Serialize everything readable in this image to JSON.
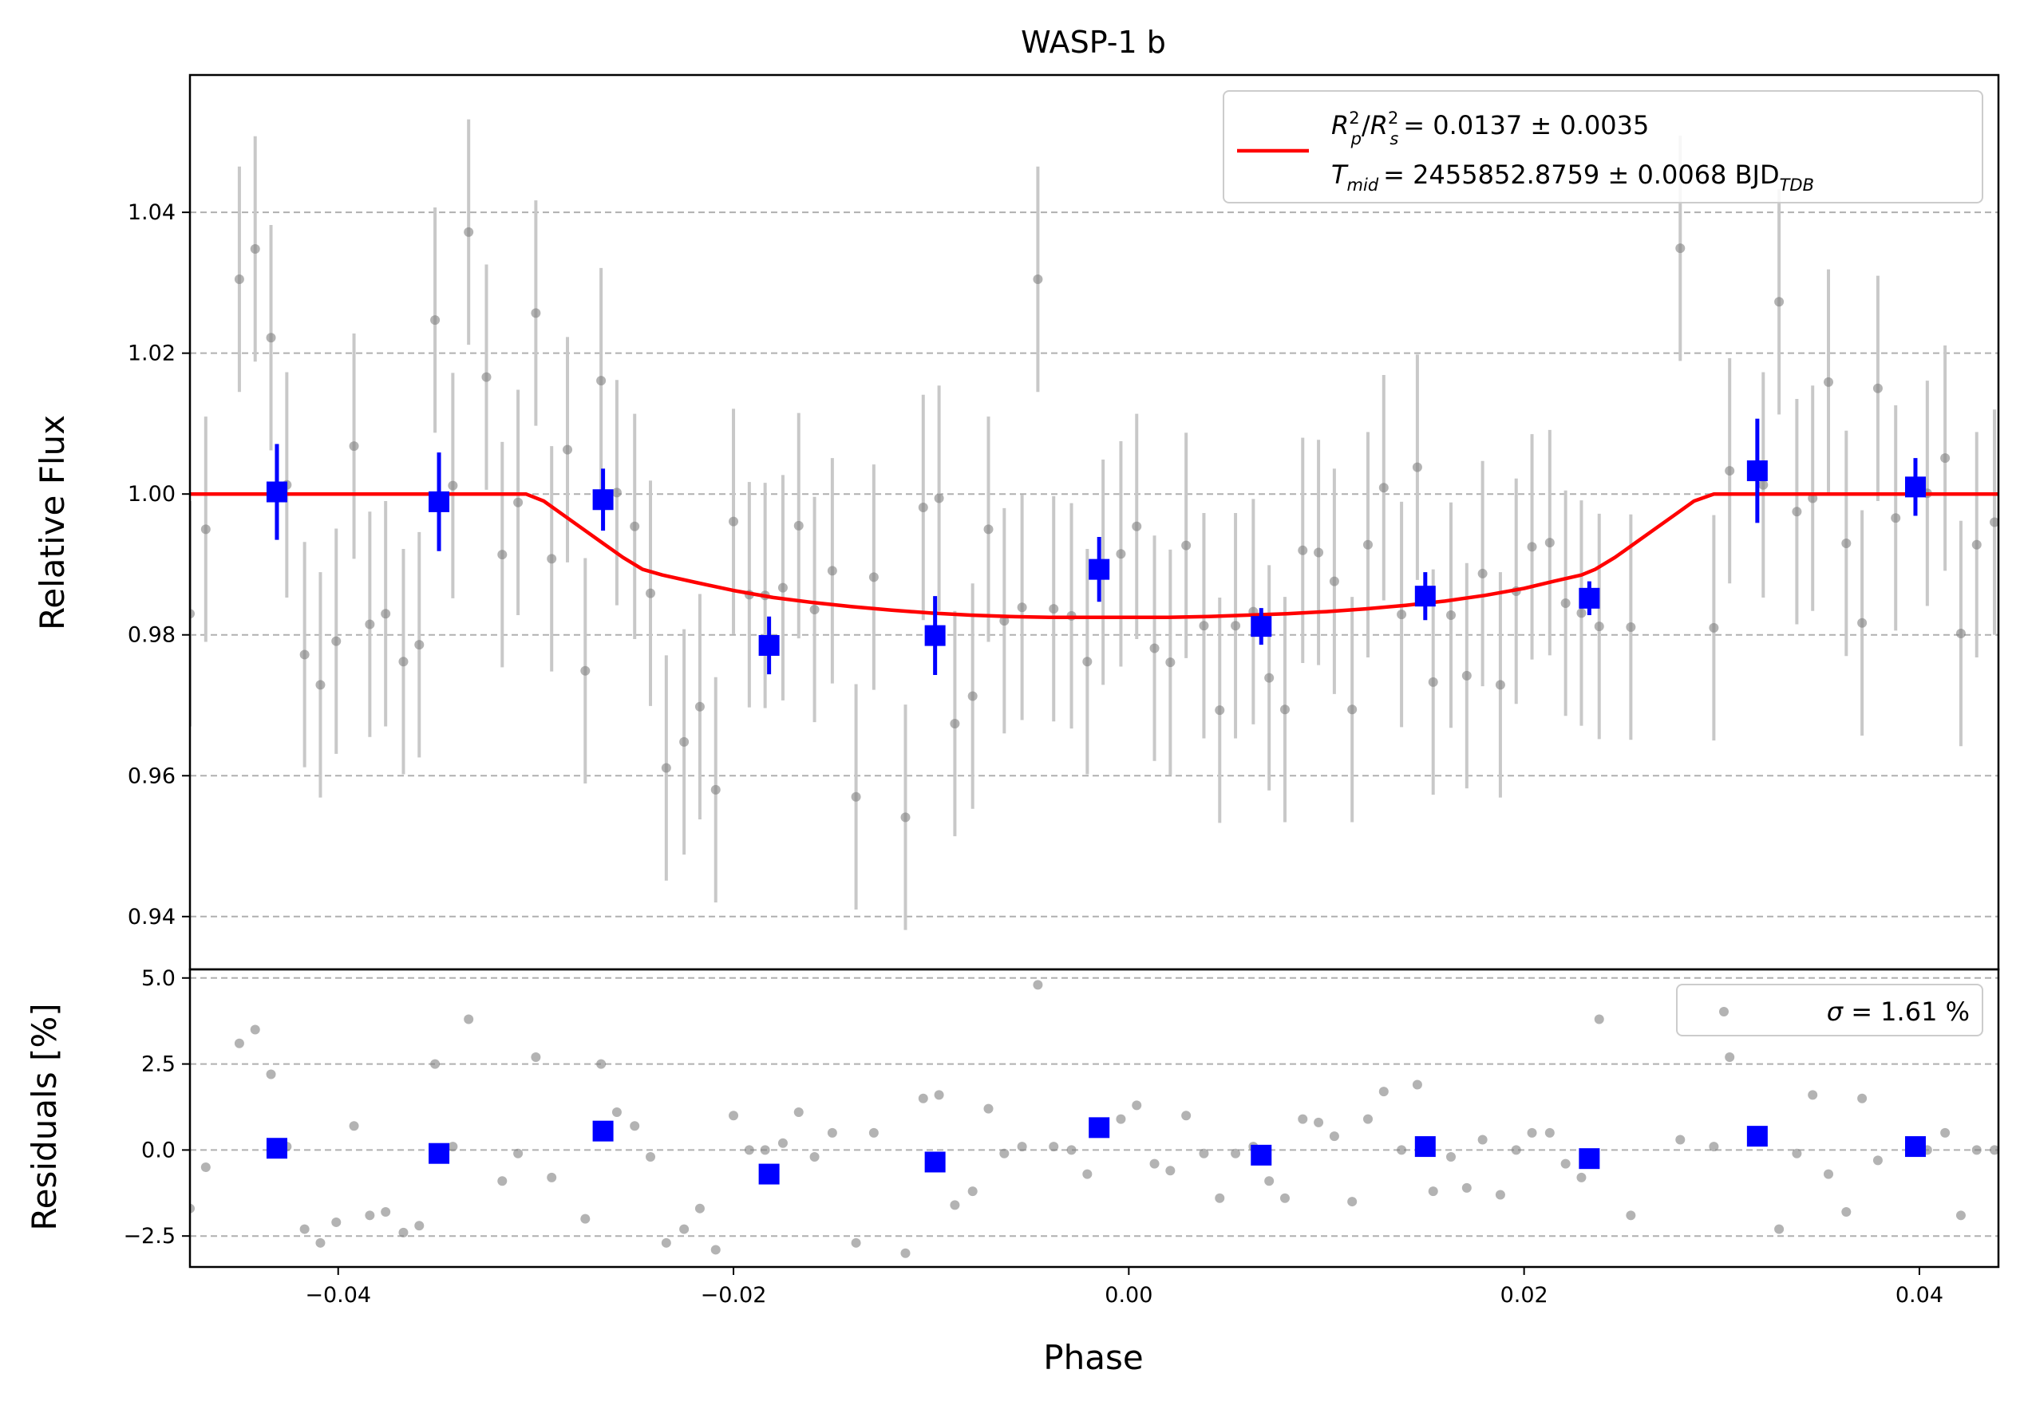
{
  "chart_data": [
    {
      "type": "scatter",
      "panel": "top",
      "title": "WASP-1 b",
      "xlabel": "",
      "ylabel": "Relative Flux",
      "xlim": [
        -0.0475,
        0.044
      ],
      "ylim": [
        0.9325,
        1.0595
      ],
      "grid": "horizontal dashed",
      "y_ticks": [
        0.94,
        0.96,
        0.98,
        1.0,
        1.02,
        1.04
      ],
      "y_tick_labels": [
        "0.94",
        "0.96",
        "0.98",
        "1.00",
        "1.02",
        "1.04"
      ],
      "legend": {
        "placement": "upper-right",
        "line1": {
          "lhs_a": "R",
          "lhs_a_sup": "2",
          "lhs_a_sub": "p",
          "lhs_b": "R",
          "lhs_b_sup": "2",
          "lhs_b_sub": "s",
          "rhs": "= 0.0137 ± 0.0035"
        },
        "line2": {
          "lhs": "T",
          "lhs_sub": "mid",
          "rhs": "= 2455852.8759 ± 0.0068 BJD",
          "unit_sub": "TDB"
        }
      },
      "colors": {
        "raw": "#808080",
        "raw_err": "#c8c8c8",
        "binned": "#0000ff",
        "model": "#ff0000"
      },
      "series": [
        {
          "name": "",
          "kind": "raw",
          "x": [
            -0.0475,
            -0.0467,
            -0.045,
            -0.0442,
            -0.0434,
            -0.0426,
            -0.0417,
            -0.0409,
            -0.0401,
            -0.0392,
            -0.0384,
            -0.0376,
            -0.0367,
            -0.0359,
            -0.0351,
            -0.0342,
            -0.0334,
            -0.0325,
            -0.0317,
            -0.0309,
            -0.03,
            -0.0292,
            -0.0284,
            -0.0275,
            -0.0267,
            -0.0259,
            -0.025,
            -0.0242,
            -0.0234,
            -0.0225,
            -0.0217,
            -0.0209,
            -0.02,
            -0.0192,
            -0.0184,
            -0.0175,
            -0.0167,
            -0.0159,
            -0.015,
            -0.0138,
            -0.0129,
            -0.0113,
            -0.0104,
            -0.0096,
            -0.0088,
            -0.0079,
            -0.0071,
            -0.0063,
            -0.0054,
            -0.0046,
            -0.0038,
            -0.0029,
            -0.0021,
            -0.0013,
            -0.0004,
            0.0004,
            0.0013,
            0.0021,
            0.0029,
            0.0038,
            0.0046,
            0.0054,
            0.0063,
            0.0071,
            0.0079,
            0.0088,
            0.0096,
            0.0104,
            0.0113,
            0.0121,
            0.0129,
            0.0138,
            0.0146,
            0.0154,
            0.0163,
            0.0171,
            0.0179,
            0.0188,
            0.0196,
            0.0204,
            0.0213,
            0.0221,
            0.0229,
            0.0238,
            0.0254,
            0.0279,
            0.0296,
            0.0304,
            0.0321,
            0.0329,
            0.0338,
            0.0346,
            0.0354,
            0.0363,
            0.0371,
            0.0379,
            0.0388,
            0.0404,
            0.0413,
            0.0421,
            0.0429,
            0.0438
          ],
          "y": [
            0.983,
            0.995,
            1.0305,
            1.0348,
            1.0222,
            1.0013,
            0.9772,
            0.9729,
            0.9791,
            1.0068,
            0.9815,
            0.983,
            0.9762,
            0.9786,
            1.0247,
            1.0012,
            1.0372,
            1.0166,
            0.9914,
            0.9988,
            1.0257,
            0.9908,
            1.0063,
            0.9749,
            1.0161,
            1.0002,
            0.9954,
            0.9859,
            0.9611,
            0.9648,
            0.9698,
            0.958,
            0.9961,
            0.9857,
            0.9856,
            0.9867,
            0.9955,
            0.9836,
            0.9891,
            0.957,
            0.9882,
            0.9541,
            0.9981,
            0.9994,
            0.9674,
            0.9713,
            0.995,
            0.982,
            0.9839,
            1.0305,
            0.9837,
            0.9827,
            0.9762,
            0.9889,
            0.9915,
            0.9954,
            0.9781,
            0.9761,
            0.9927,
            0.9813,
            0.9693,
            0.9813,
            0.9833,
            0.9739,
            0.9694,
            0.992,
            0.9917,
            0.9876,
            0.9694,
            0.9928,
            1.0009,
            0.9829,
            1.0038,
            0.9733,
            0.9828,
            0.9742,
            0.9887,
            0.9729,
            0.9862,
            0.9925,
            0.9931,
            0.9845,
            0.9831,
            0.9812,
            0.9811,
            1.0349,
            0.981,
            1.0033,
            1.0013,
            1.0273,
            0.9975,
            0.9994,
            1.0159,
            0.993,
            0.9817,
            1.015,
            0.9966,
            1.0001,
            1.0051,
            0.9802,
            0.9928,
            0.996
          ],
          "yerr": 0.016
        },
        {
          "name": "",
          "kind": "binned",
          "x": [
            -0.0431,
            -0.0349,
            -0.0266,
            -0.0182,
            -0.0098,
            -0.0015,
            0.0067,
            0.015,
            0.0233,
            0.0318,
            0.0398
          ],
          "y": [
            1.0003,
            0.9989,
            0.9992,
            0.9785,
            0.9799,
            0.9893,
            0.9812,
            0.9855,
            0.9852,
            1.0033,
            1.001
          ],
          "yerr": [
            0.0068,
            0.007,
            0.0044,
            0.0041,
            0.0056,
            0.0046,
            0.0026,
            0.0034,
            0.0024,
            0.0074,
            0.0041
          ]
        },
        {
          "name": "",
          "kind": "model",
          "x": [
            -0.0475,
            -0.0305,
            -0.0296,
            -0.0286,
            -0.0276,
            -0.0266,
            -0.0256,
            -0.0246,
            -0.0236,
            -0.022,
            -0.02,
            -0.018,
            -0.016,
            -0.014,
            -0.012,
            -0.01,
            -0.008,
            -0.006,
            -0.004,
            -0.002,
            0.0,
            0.002,
            0.004,
            0.006,
            0.008,
            0.01,
            0.012,
            0.014,
            0.016,
            0.018,
            0.02,
            0.0215,
            0.0229,
            0.0236,
            0.0246,
            0.0256,
            0.0266,
            0.0276,
            0.0286,
            0.0296,
            0.0305,
            0.044
          ],
          "y": [
            1.0,
            1.0,
            0.999,
            0.997,
            0.995,
            0.993,
            0.991,
            0.9893,
            0.9885,
            0.9875,
            0.9863,
            0.9853,
            0.9846,
            0.984,
            0.9835,
            0.9831,
            0.9828,
            0.9826,
            0.9825,
            0.9825,
            0.9825,
            0.9825,
            0.9826,
            0.9828,
            0.983,
            0.9833,
            0.9837,
            0.9842,
            0.9848,
            0.9856,
            0.9866,
            0.9876,
            0.9885,
            0.9893,
            0.991,
            0.993,
            0.995,
            0.997,
            0.999,
            1.0,
            1.0,
            1.0
          ]
        }
      ]
    },
    {
      "type": "scatter",
      "panel": "bottom",
      "xlabel": "Phase",
      "ylabel": "Residuals [%]",
      "xlim": [
        -0.0475,
        0.044
      ],
      "ylim": [
        -3.4,
        5.25
      ],
      "grid": "horizontal dashed",
      "x_ticks": [
        -0.04,
        -0.02,
        0.0,
        0.02,
        0.04
      ],
      "x_tick_labels": [
        "−0.04",
        "−0.02",
        "0.00",
        "0.02",
        "0.04"
      ],
      "y_ticks": [
        -2.5,
        0.0,
        2.5,
        5.0
      ],
      "y_tick_labels": [
        "−2.5",
        "0.0",
        "2.5",
        "5.0"
      ],
      "legend": {
        "placement": "upper-right",
        "symbol": "σ",
        "text": " = 1.61 %"
      },
      "series": [
        {
          "name": "",
          "kind": "raw",
          "x": [
            -0.0475,
            -0.0467,
            -0.045,
            -0.0442,
            -0.0434,
            -0.0426,
            -0.0417,
            -0.0409,
            -0.0401,
            -0.0392,
            -0.0384,
            -0.0376,
            -0.0367,
            -0.0359,
            -0.0351,
            -0.0342,
            -0.0334,
            -0.0317,
            -0.0309,
            -0.03,
            -0.0292,
            -0.0275,
            -0.0267,
            -0.0259,
            -0.025,
            -0.0242,
            -0.0234,
            -0.0225,
            -0.0217,
            -0.0209,
            -0.02,
            -0.0192,
            -0.0184,
            -0.0175,
            -0.0167,
            -0.0159,
            -0.015,
            -0.0138,
            -0.0129,
            -0.0113,
            -0.0104,
            -0.0096,
            -0.0088,
            -0.0079,
            -0.0071,
            -0.0063,
            -0.0054,
            -0.0046,
            -0.0038,
            -0.0029,
            -0.0021,
            -0.0013,
            -0.0004,
            0.0004,
            0.0013,
            0.0021,
            0.0029,
            0.0038,
            0.0046,
            0.0054,
            0.0063,
            0.0071,
            0.0079,
            0.0088,
            0.0096,
            0.0104,
            0.0113,
            0.0121,
            0.0129,
            0.0138,
            0.0146,
            0.0154,
            0.0163,
            0.0171,
            0.0179,
            0.0188,
            0.0196,
            0.0204,
            0.0213,
            0.0221,
            0.0229,
            0.0238,
            0.0254,
            0.0279,
            0.0296,
            0.0304,
            0.0329,
            0.0338,
            0.0346,
            0.0354,
            0.0363,
            0.0371,
            0.0379,
            0.0404,
            0.0413,
            0.0421,
            0.0429,
            0.0438
          ],
          "y": [
            -1.7,
            -0.5,
            3.1,
            3.5,
            2.2,
            0.1,
            -2.3,
            -2.7,
            -2.1,
            0.7,
            -1.9,
            -1.8,
            -2.4,
            -2.2,
            2.5,
            0.1,
            3.8,
            -0.9,
            -0.1,
            2.7,
            -0.8,
            -2.0,
            2.5,
            1.1,
            0.7,
            -0.2,
            -2.7,
            -2.3,
            -1.7,
            -2.9,
            1.0,
            0.0,
            0.0,
            0.2,
            1.1,
            -0.2,
            0.5,
            -2.7,
            0.5,
            -3.0,
            1.5,
            1.6,
            -1.6,
            -1.2,
            1.2,
            -0.1,
            0.1,
            4.8,
            0.1,
            0.0,
            -0.7,
            0.7,
            0.9,
            1.3,
            -0.4,
            -0.6,
            1.0,
            -0.1,
            -1.4,
            -0.1,
            0.1,
            -0.9,
            -1.4,
            0.9,
            0.8,
            0.4,
            -1.5,
            0.9,
            1.7,
            0.0,
            1.9,
            -1.2,
            -0.2,
            -1.1,
            0.3,
            -1.3,
            0.0,
            0.5,
            0.5,
            -0.4,
            -0.8,
            3.8,
            -1.9,
            0.3,
            0.1,
            2.7,
            -2.3,
            -0.1,
            1.6,
            -0.7,
            -1.8,
            1.5,
            -0.3,
            0.0,
            0.5,
            -1.9,
            0.0,
            0.0
          ],
          "yerr": 0
        },
        {
          "name": "",
          "kind": "binned",
          "x": [
            -0.0431,
            -0.0349,
            -0.0266,
            -0.0182,
            -0.0098,
            -0.0015,
            0.0067,
            0.015,
            0.0233,
            0.0318,
            0.0398
          ],
          "y": [
            0.05,
            -0.1,
            0.55,
            -0.7,
            -0.35,
            0.65,
            -0.15,
            0.1,
            -0.25,
            0.4,
            0.1
          ]
        }
      ]
    }
  ]
}
